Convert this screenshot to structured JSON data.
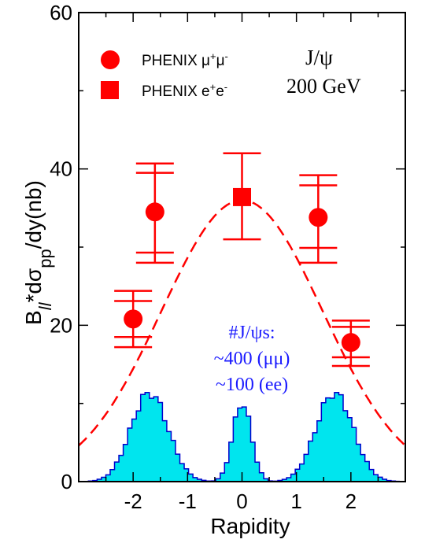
{
  "chart_data": {
    "type": "scatter",
    "xlabel": "Rapidity",
    "ylabel": {
      "main": "B",
      "sub1": "ll",
      "mid": "*dσ",
      "sub2": "pp",
      "end": "/dy(nb)"
    },
    "xlim": [
      -3,
      3
    ],
    "ylim": [
      0,
      60
    ],
    "x_ticks": [
      -2,
      -1,
      0,
      1,
      2
    ],
    "y_ticks": [
      0,
      20,
      40,
      60
    ],
    "series": [
      {
        "name": "PHENIX μ+μ-",
        "marker": "circle",
        "color": "#ff0000",
        "points": [
          {
            "x": -2.0,
            "y": 20.8,
            "outer": [
              17.2,
              24.4
            ],
            "inner": [
              18.5,
              23.1
            ]
          },
          {
            "x": -1.6,
            "y": 34.5,
            "outer": [
              28.0,
              40.7
            ],
            "inner": [
              29.3,
              39.5
            ]
          },
          {
            "x": 1.4,
            "y": 33.8,
            "outer": [
              28.0,
              39.2
            ],
            "inner": [
              29.9,
              37.9
            ]
          },
          {
            "x": 2.0,
            "y": 17.8,
            "outer": [
              14.8,
              20.6
            ],
            "inner": [
              15.9,
              19.8
            ]
          }
        ]
      },
      {
        "name": "PHENIX e+e-",
        "marker": "square",
        "color": "#ff0000",
        "points": [
          {
            "x": 0.0,
            "y": 36.4,
            "outer": [
              31.0,
              42.0
            ],
            "inner": [
              31.0,
              42.0
            ]
          }
        ]
      }
    ],
    "fit_curve": {
      "style": "dashed",
      "color": "#ff0000",
      "peak": 36.0,
      "sigma": 1.48
    },
    "acceptance_histograms": {
      "color": "#00e5ee",
      "edge_color": "#0000cc",
      "peaks": [
        {
          "center": -1.7,
          "height": 11.4,
          "width": 0.34
        },
        {
          "center": 0.0,
          "height": 10.1,
          "width": 0.17
        },
        {
          "center": 1.7,
          "height": 11.4,
          "width": 0.34
        }
      ],
      "bin_width": 0.08
    },
    "legend": {
      "position": "top-left",
      "entries": [
        {
          "marker": "circle",
          "label": "PHENIX μ",
          "sup1": "+",
          "mid": "μ",
          "sup2": "-"
        },
        {
          "marker": "square",
          "label": "PHENIX e",
          "sup1": "+",
          "mid": "e",
          "sup2": "-"
        }
      ]
    },
    "annotations": {
      "particle": "J/ψ",
      "energy": "200 GeV",
      "counts_title": "#J/ψs:",
      "counts_mumu": "~400 (μμ)",
      "counts_ee": "~100 (ee)"
    }
  }
}
